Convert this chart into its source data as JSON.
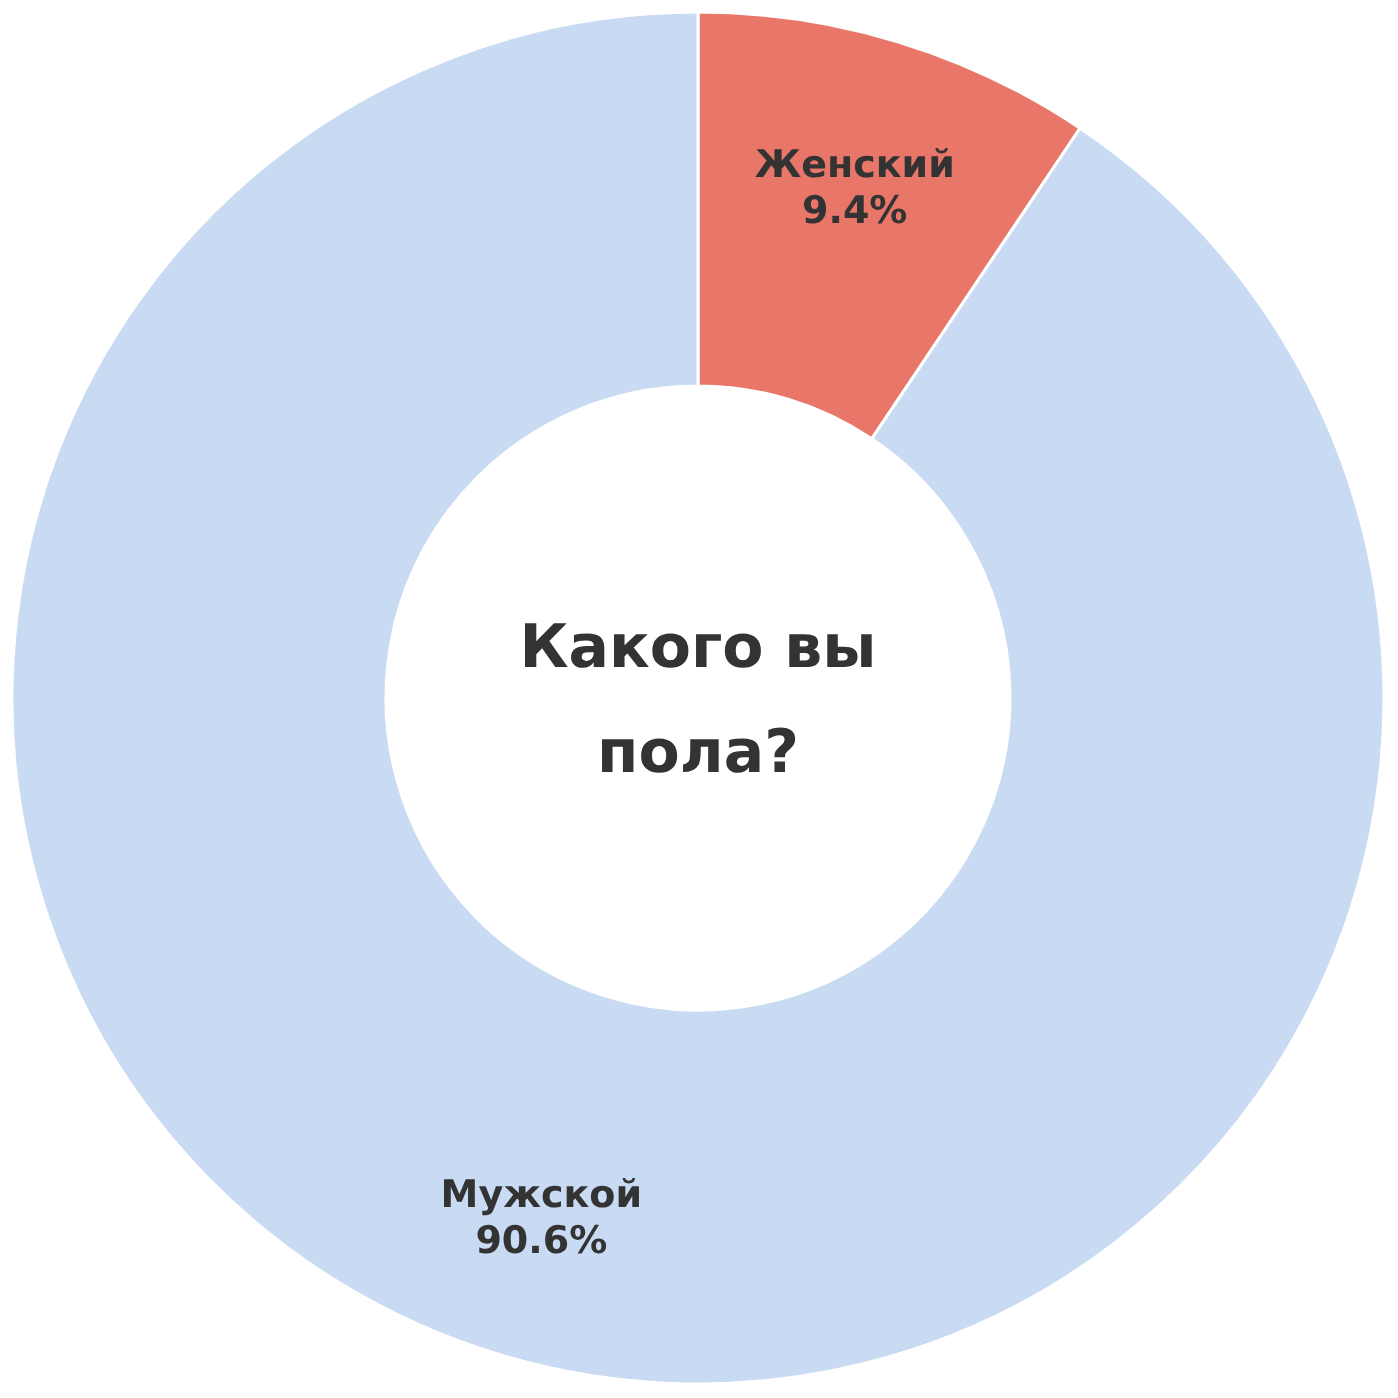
{
  "chart_data": {
    "type": "donut",
    "title": "Какого вы пола?",
    "categories": [
      "Женский",
      "Мужской"
    ],
    "values": [
      9.4,
      90.6
    ],
    "value_labels": [
      "9.4%",
      "90.6%"
    ],
    "colors": [
      "#e8776a",
      "#c9dbf3"
    ]
  }
}
